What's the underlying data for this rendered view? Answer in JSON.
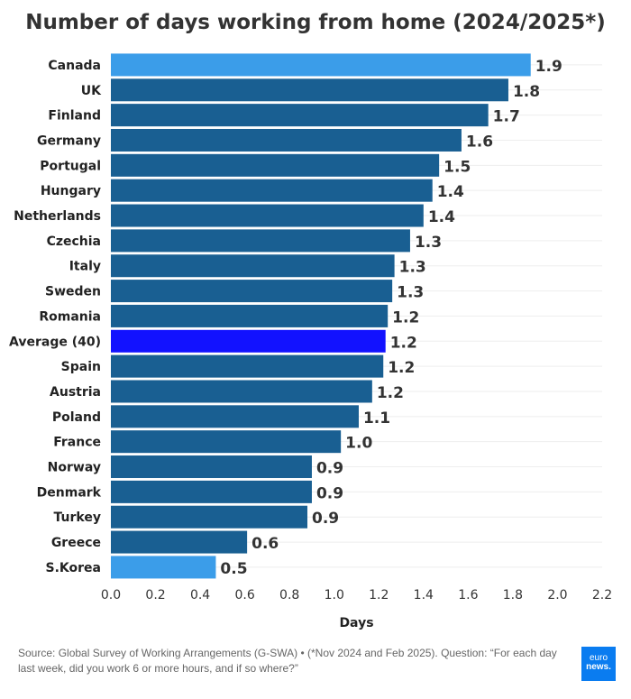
{
  "chart_data": {
    "type": "bar",
    "orientation": "horizontal",
    "title": "Number of days working from home (2024/2025*)",
    "xlabel": "Days",
    "ylabel": "",
    "xlim": [
      0,
      2.2
    ],
    "xticks": [
      "0.0",
      "0.2",
      "0.4",
      "0.6",
      "0.8",
      "1.0",
      "1.2",
      "1.4",
      "1.6",
      "1.8",
      "2.0",
      "2.2"
    ],
    "grid": true,
    "categories": [
      "Canada",
      "UK",
      "Finland",
      "Germany",
      "Portugal",
      "Hungary",
      "Netherlands",
      "Czechia",
      "Italy",
      "Sweden",
      "Romania",
      "Average (40)",
      "Spain",
      "Austria",
      "Poland",
      "France",
      "Norway",
      "Denmark",
      "Turkey",
      "Greece",
      "S.Korea"
    ],
    "values": [
      1.88,
      1.78,
      1.69,
      1.57,
      1.47,
      1.44,
      1.4,
      1.34,
      1.27,
      1.26,
      1.24,
      1.23,
      1.22,
      1.17,
      1.11,
      1.03,
      0.9,
      0.9,
      0.88,
      0.61,
      0.47
    ],
    "labels": [
      "1.9",
      "1.8",
      "1.7",
      "1.6",
      "1.5",
      "1.4",
      "1.4",
      "1.3",
      "1.3",
      "1.3",
      "1.2",
      "1.2",
      "1.2",
      "1.2",
      "1.1",
      "1.0",
      "0.9",
      "0.9",
      "0.9",
      "0.6",
      "0.5"
    ],
    "highlight": {
      "Canada": "light",
      "Average (40)": "average",
      "S.Korea": "light"
    },
    "colors": {
      "default": "#195f92",
      "light": "#3b9de9",
      "average": "#1212ff"
    }
  },
  "footer": {
    "source": "Source: Global Survey of Working Arrangements (G-SWA) • (*Nov 2024 and Feb 2025). Question: “For each day last week, did you work 6 or more hours, and if so where?”",
    "logo_top": "euro",
    "logo_bottom": "news."
  }
}
